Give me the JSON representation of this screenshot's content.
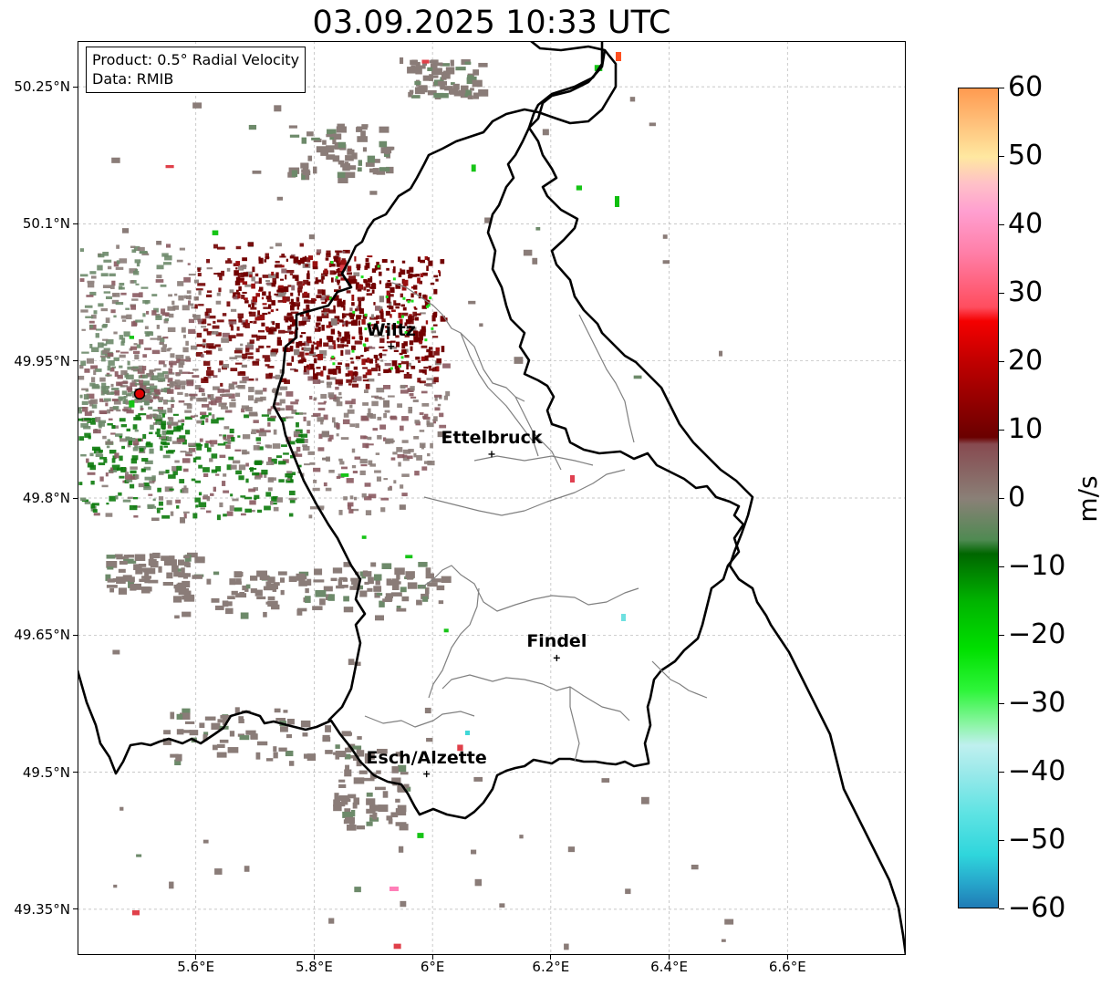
{
  "title": "03.09.2025 10:33 UTC",
  "product_box": {
    "line1": "Product: 0.5° Radial Velocity",
    "line2": "Data: RMIB"
  },
  "axes": {
    "lat_ticks": [
      "50.25°N",
      "50.1°N",
      "49.95°N",
      "49.8°N",
      "49.65°N",
      "49.5°N",
      "49.35°N"
    ],
    "lon_ticks": [
      "5.6°E",
      "5.8°E",
      "6°E",
      "6.2°E",
      "6.4°E",
      "6.6°E"
    ],
    "lat_values": [
      50.25,
      50.1,
      49.95,
      49.8,
      49.65,
      49.5,
      49.35
    ],
    "lon_values": [
      5.6,
      5.8,
      6.0,
      6.2,
      6.4,
      6.6
    ],
    "lon_range": [
      5.4,
      6.8
    ],
    "lat_range": [
      49.3,
      50.3
    ],
    "grid": true
  },
  "cities": [
    {
      "name": "Wiltz",
      "lon": 5.93,
      "lat": 49.966
    },
    {
      "name": "Ettelbruck",
      "lon": 6.1,
      "lat": 49.848
    },
    {
      "name": "Findel",
      "lon": 6.21,
      "lat": 49.625
    },
    {
      "name": "Esch/Alzette",
      "lon": 5.99,
      "lat": 49.498
    }
  ],
  "radar_site": {
    "lon": 5.505,
    "lat": 49.914,
    "color": "#e00000"
  },
  "colorbar": {
    "label": "m/s",
    "min": -60,
    "max": 60,
    "ticks": [
      "60",
      "50",
      "40",
      "30",
      "20",
      "10",
      "0",
      "−10",
      "−20",
      "−30",
      "−40",
      "−50",
      "−60"
    ],
    "stops": [
      {
        "v": -60,
        "c": "#1f78b4"
      },
      {
        "v": -56,
        "c": "#27a8cc"
      },
      {
        "v": -52,
        "c": "#2fd6dc"
      },
      {
        "v": -46,
        "c": "#5ee3e3"
      },
      {
        "v": -40,
        "c": "#9ae9ea"
      },
      {
        "v": -36,
        "c": "#bff0ef"
      },
      {
        "v": -33,
        "c": "#8df5a6"
      },
      {
        "v": -28,
        "c": "#2ef53a"
      },
      {
        "v": -22,
        "c": "#00e000"
      },
      {
        "v": -15,
        "c": "#00b400"
      },
      {
        "v": -8,
        "c": "#006600"
      },
      {
        "v": -6,
        "c": "#4f8a52"
      },
      {
        "v": 0,
        "c": "#8a8077"
      },
      {
        "v": 8,
        "c": "#874a50"
      },
      {
        "v": 9,
        "c": "#6a0000"
      },
      {
        "v": 20,
        "c": "#c00000"
      },
      {
        "v": 26,
        "c": "#f50000"
      },
      {
        "v": 28,
        "c": "#ff4d5e"
      },
      {
        "v": 36,
        "c": "#ff7fa8"
      },
      {
        "v": 42,
        "c": "#ff9fd0"
      },
      {
        "v": 46,
        "c": "#ffc0c8"
      },
      {
        "v": 50,
        "c": "#ffe8a0"
      },
      {
        "v": 55,
        "c": "#ffc07a"
      },
      {
        "v": 60,
        "c": "#ff9a50"
      }
    ]
  }
}
